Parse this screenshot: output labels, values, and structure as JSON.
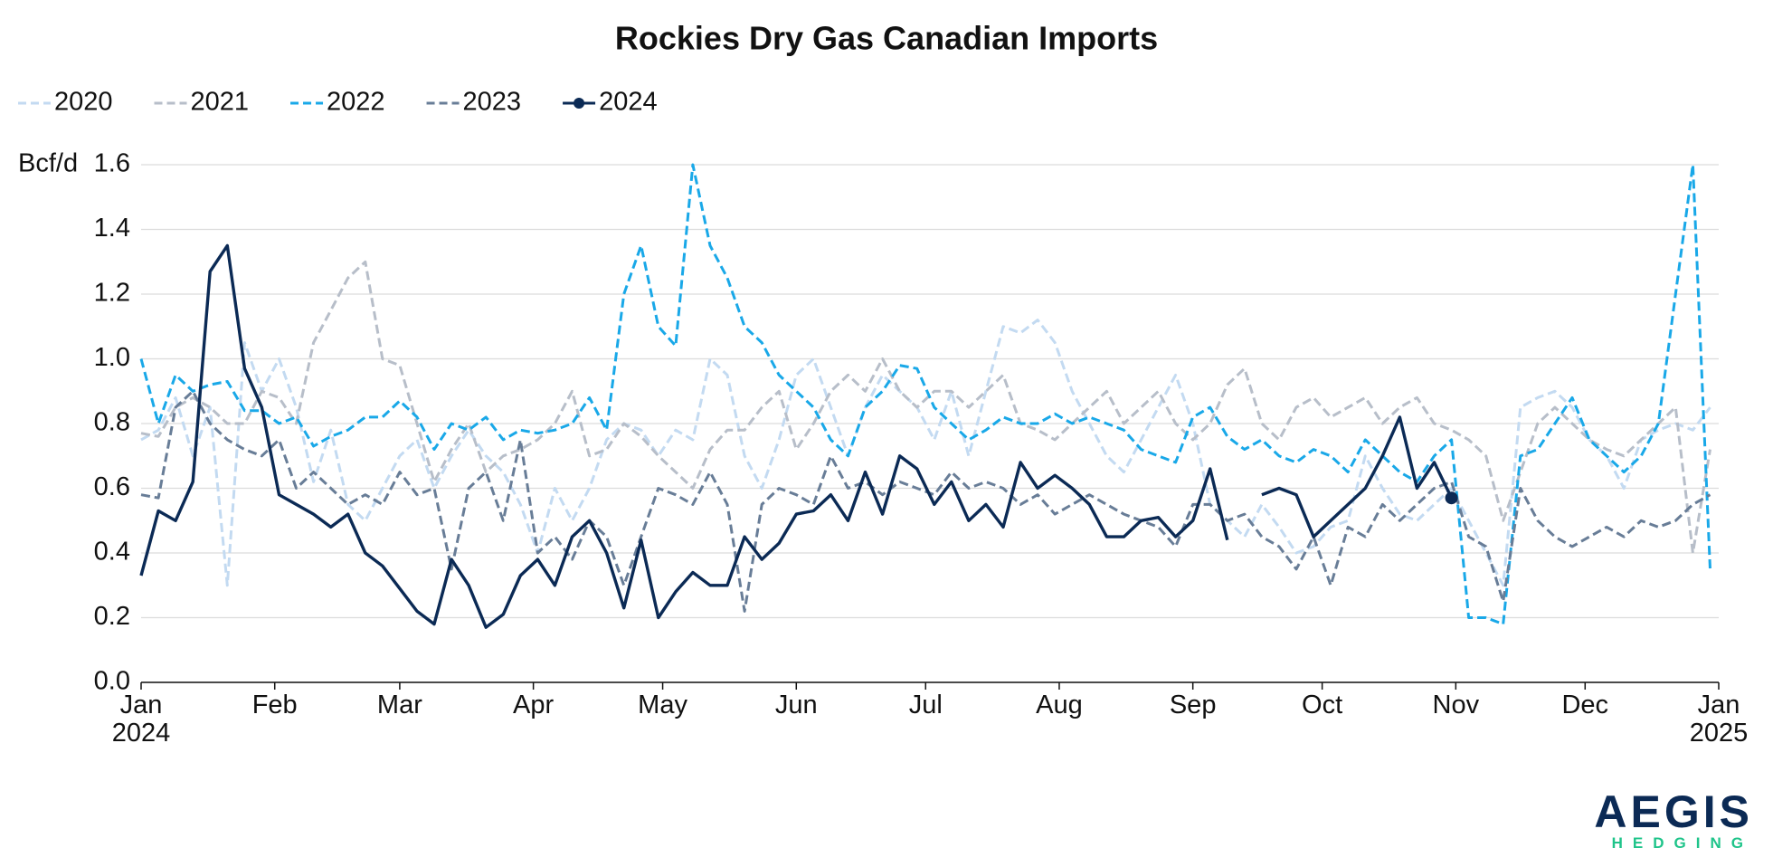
{
  "chart_data": {
    "type": "line",
    "title": "Rockies Dry Gas Canadian Imports",
    "y_label": "Bcf/d",
    "xlim": [
      0,
      366
    ],
    "xticks": [
      {
        "value": 0,
        "label": "Jan\n2024"
      },
      {
        "value": 31,
        "label": "Feb"
      },
      {
        "value": 60,
        "label": "Mar"
      },
      {
        "value": 91,
        "label": "Apr"
      },
      {
        "value": 121,
        "label": "May"
      },
      {
        "value": 152,
        "label": "Jun"
      },
      {
        "value": 182,
        "label": "Jul"
      },
      {
        "value": 213,
        "label": "Aug"
      },
      {
        "value": 244,
        "label": "Sep"
      },
      {
        "value": 274,
        "label": "Oct"
      },
      {
        "value": 305,
        "label": "Nov"
      },
      {
        "value": 335,
        "label": "Dec"
      },
      {
        "value": 366,
        "label": "Jan\n2025"
      }
    ],
    "ylim": [
      0,
      1.6
    ],
    "yticks": [
      {
        "value": 0,
        "label": "0.0"
      },
      0.2,
      0.4,
      0.6,
      0.8,
      {
        "value": 1,
        "label": "1.0"
      },
      1.2,
      1.4,
      1.6
    ],
    "grid": true,
    "legend": "top-left",
    "x": [
      0,
      4,
      8,
      12,
      16,
      20,
      24,
      28,
      32,
      36,
      40,
      44,
      48,
      52,
      56,
      60,
      64,
      68,
      72,
      76,
      80,
      84,
      88,
      92,
      96,
      100,
      104,
      108,
      112,
      116,
      120,
      124,
      128,
      132,
      136,
      140,
      144,
      148,
      152,
      156,
      160,
      164,
      168,
      172,
      176,
      180,
      184,
      188,
      192,
      196,
      200,
      204,
      208,
      212,
      216,
      220,
      224,
      228,
      232,
      236,
      240,
      244,
      248,
      252,
      256,
      260,
      264,
      268,
      272,
      276,
      280,
      284,
      288,
      292,
      296,
      300,
      304,
      308,
      312,
      316,
      320,
      324,
      328,
      332,
      336,
      340,
      344,
      348,
      352,
      356,
      360,
      364
    ],
    "series": [
      {
        "name": "2020",
        "color": "#c3daf1",
        "dashed": true,
        "values": [
          0.75,
          0.78,
          0.88,
          0.7,
          0.85,
          0.3,
          1.05,
          0.9,
          1.0,
          0.85,
          0.62,
          0.78,
          0.55,
          0.5,
          0.6,
          0.7,
          0.75,
          0.6,
          0.7,
          0.78,
          0.7,
          0.65,
          0.55,
          0.4,
          0.6,
          0.5,
          0.6,
          0.75,
          0.8,
          0.78,
          0.7,
          0.78,
          0.75,
          1.0,
          0.95,
          0.7,
          0.6,
          0.75,
          0.95,
          1.0,
          0.85,
          0.7,
          0.85,
          0.95,
          0.9,
          0.85,
          0.75,
          0.9,
          0.7,
          0.9,
          1.1,
          1.08,
          1.12,
          1.05,
          0.9,
          0.8,
          0.7,
          0.65,
          0.75,
          0.85,
          0.95,
          0.8,
          0.55,
          0.5,
          0.45,
          0.55,
          0.48,
          0.4,
          0.42,
          0.48,
          0.5,
          0.7,
          0.6,
          0.52,
          0.5,
          0.55,
          0.6,
          0.5,
          0.4,
          0.3,
          0.85,
          0.88,
          0.9,
          0.85,
          0.75,
          0.7,
          0.6,
          0.75,
          0.78,
          0.8,
          0.78,
          0.85
        ]
      },
      {
        "name": "2021",
        "color": "#b7bec9",
        "dashed": true,
        "values": [
          0.77,
          0.76,
          0.85,
          0.88,
          0.85,
          0.8,
          0.8,
          0.9,
          0.88,
          0.8,
          1.05,
          1.15,
          1.25,
          1.3,
          1.0,
          0.98,
          0.8,
          0.62,
          0.72,
          0.8,
          0.65,
          0.7,
          0.72,
          0.75,
          0.8,
          0.9,
          0.7,
          0.72,
          0.8,
          0.76,
          0.7,
          0.65,
          0.6,
          0.72,
          0.78,
          0.78,
          0.85,
          0.9,
          0.72,
          0.8,
          0.9,
          0.95,
          0.9,
          1.0,
          0.9,
          0.85,
          0.9,
          0.9,
          0.85,
          0.9,
          0.95,
          0.8,
          0.78,
          0.75,
          0.8,
          0.85,
          0.9,
          0.8,
          0.85,
          0.9,
          0.8,
          0.75,
          0.8,
          0.92,
          0.97,
          0.8,
          0.75,
          0.85,
          0.88,
          0.82,
          0.85,
          0.88,
          0.8,
          0.85,
          0.88,
          0.8,
          0.78,
          0.75,
          0.7,
          0.5,
          0.65,
          0.8,
          0.85,
          0.8,
          0.75,
          0.72,
          0.7,
          0.75,
          0.8,
          0.85,
          0.4,
          0.72
        ]
      },
      {
        "name": "2022",
        "color": "#19a8e8",
        "dashed": true,
        "values": [
          1.0,
          0.8,
          0.95,
          0.9,
          0.92,
          0.93,
          0.84,
          0.84,
          0.8,
          0.82,
          0.73,
          0.76,
          0.78,
          0.82,
          0.82,
          0.87,
          0.82,
          0.72,
          0.8,
          0.78,
          0.82,
          0.75,
          0.78,
          0.77,
          0.78,
          0.8,
          0.88,
          0.78,
          1.2,
          1.35,
          1.1,
          1.04,
          1.6,
          1.35,
          1.25,
          1.1,
          1.05,
          0.95,
          0.9,
          0.85,
          0.75,
          0.7,
          0.85,
          0.9,
          0.98,
          0.97,
          0.85,
          0.8,
          0.75,
          0.78,
          0.82,
          0.8,
          0.8,
          0.83,
          0.8,
          0.82,
          0.8,
          0.78,
          0.72,
          0.7,
          0.68,
          0.82,
          0.85,
          0.76,
          0.72,
          0.75,
          0.7,
          0.68,
          0.72,
          0.7,
          0.65,
          0.75,
          0.7,
          0.65,
          0.62,
          0.7,
          0.75,
          0.2,
          0.2,
          0.18,
          0.7,
          0.72,
          0.8,
          0.88,
          0.75,
          0.7,
          0.65,
          0.7,
          0.8,
          1.2,
          1.6,
          0.35
        ]
      },
      {
        "name": "2023",
        "color": "#687d97",
        "dashed": true,
        "values": [
          0.58,
          0.57,
          0.85,
          0.9,
          0.8,
          0.75,
          0.72,
          0.7,
          0.75,
          0.6,
          0.65,
          0.6,
          0.55,
          0.58,
          0.55,
          0.65,
          0.58,
          0.6,
          0.35,
          0.6,
          0.65,
          0.5,
          0.75,
          0.4,
          0.45,
          0.38,
          0.5,
          0.45,
          0.3,
          0.45,
          0.6,
          0.58,
          0.55,
          0.65,
          0.55,
          0.22,
          0.55,
          0.6,
          0.58,
          0.55,
          0.7,
          0.6,
          0.62,
          0.58,
          0.62,
          0.6,
          0.58,
          0.65,
          0.6,
          0.62,
          0.6,
          0.55,
          0.58,
          0.52,
          0.55,
          0.58,
          0.55,
          0.52,
          0.5,
          0.48,
          0.42,
          0.55,
          0.55,
          0.5,
          0.52,
          0.45,
          0.42,
          0.35,
          0.45,
          0.3,
          0.48,
          0.45,
          0.55,
          0.5,
          0.55,
          0.6,
          0.62,
          0.45,
          0.42,
          0.25,
          0.6,
          0.5,
          0.45,
          0.42,
          0.45,
          0.48,
          0.45,
          0.5,
          0.48,
          0.5,
          0.55,
          0.58
        ]
      },
      {
        "name": "2024",
        "color": "#0b2a55",
        "dashed": false,
        "end_marker": true,
        "values": [
          0.33,
          0.53,
          0.5,
          0.62,
          1.27,
          1.35,
          0.97,
          0.85,
          0.58,
          0.55,
          0.52,
          0.48,
          0.52,
          0.4,
          0.36,
          0.29,
          0.22,
          0.18,
          0.38,
          0.3,
          0.17,
          0.21,
          0.33,
          0.38,
          0.3,
          0.45,
          0.5,
          0.4,
          0.23,
          0.44,
          0.2,
          0.28,
          0.34,
          0.3,
          0.3,
          0.45,
          0.38,
          0.43,
          0.52,
          0.53,
          0.58,
          0.5,
          0.65,
          0.52,
          0.7,
          0.66,
          0.55,
          0.62,
          0.5,
          0.55,
          0.48,
          0.68,
          0.6,
          0.64,
          0.6,
          0.55,
          0.45,
          0.45,
          0.5,
          0.51,
          0.45,
          0.5,
          0.66,
          0.44,
          null,
          0.58,
          0.6,
          0.58,
          0.45,
          0.5,
          0.55,
          0.6,
          0.7,
          0.82,
          0.6,
          0.68,
          0.57,
          null,
          null,
          null,
          null,
          null,
          null,
          null,
          null,
          null,
          null,
          null,
          null,
          null,
          null,
          null
        ]
      }
    ]
  },
  "logo": {
    "name": "AEGIS",
    "sub": "HEDGING"
  }
}
